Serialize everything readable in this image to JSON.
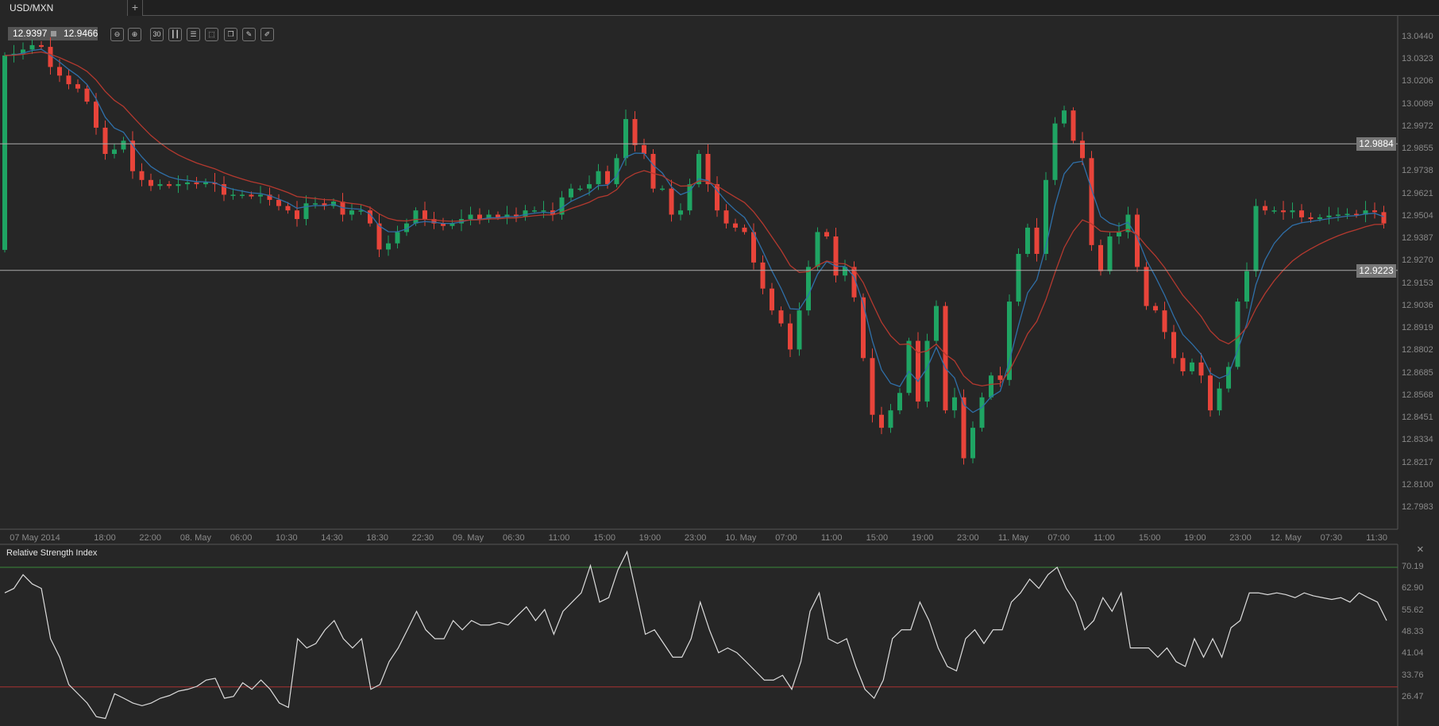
{
  "tab": {
    "title": "USD/MXN",
    "add_label": "+"
  },
  "quote": {
    "bid": "12.9397",
    "ask": "12.9466"
  },
  "toolbar": [
    {
      "name": "zoom-out-icon",
      "glyph": "⊖"
    },
    {
      "name": "zoom-in-icon",
      "glyph": "⊕"
    },
    {
      "name": "timeframe-icon",
      "glyph": "30"
    },
    {
      "name": "indicators-icon",
      "glyph": "┃┃"
    },
    {
      "name": "settings-sliders-icon",
      "glyph": "☰"
    },
    {
      "name": "chart-type-icon",
      "glyph": "⬚"
    },
    {
      "name": "copy-icon",
      "glyph": "❐"
    },
    {
      "name": "edit-icon",
      "glyph": "✎"
    },
    {
      "name": "draw-icon",
      "glyph": "✐"
    }
  ],
  "colors": {
    "up": "#1fa463",
    "down": "#e8443a",
    "ma_fast": "#2f6fa8",
    "ma_slow": "#b4392f",
    "rsi": "#dcdcdc",
    "overbought": "#3a8a3a",
    "oversold": "#a83232",
    "hline": "#aaaaaa"
  },
  "chart_data": [
    {
      "type": "candlestick",
      "symbol": "USD/MXN",
      "first_open": 12.933,
      "close": [
        13.0345,
        13.0354,
        13.0376,
        13.0399,
        13.039,
        13.0285,
        13.024,
        13.0195,
        13.0172,
        13.0104,
        12.9968,
        12.9831,
        12.9854,
        12.99,
        12.9741,
        12.9695,
        12.9664,
        12.9673,
        12.9664,
        12.9673,
        12.9682,
        12.9673,
        12.9682,
        12.9673,
        12.9618,
        12.9618,
        12.9618,
        12.9609,
        12.9618,
        12.9591,
        12.9559,
        12.9536,
        12.9491,
        12.9573,
        12.9573,
        12.9559,
        12.9582,
        12.9514,
        12.9536,
        12.9536,
        12.9468,
        12.9332,
        12.9364,
        12.9423,
        12.9468,
        12.9536,
        12.9491,
        12.9468,
        12.9455,
        12.9468,
        12.9491,
        12.9514,
        12.9491,
        12.9514,
        12.95,
        12.9514,
        12.9505,
        12.9536,
        12.9536,
        12.9536,
        12.9514,
        12.9604,
        12.965,
        12.965,
        12.9673,
        12.9741,
        12.9673,
        12.9809,
        13.0013,
        12.9877,
        12.9831,
        12.965,
        12.965,
        12.9514,
        12.9536,
        12.9673,
        12.9831,
        12.9673,
        12.9536,
        12.9468,
        12.9446,
        12.9423,
        12.9264,
        12.9128,
        12.9014,
        12.8946,
        12.881,
        12.9014,
        12.9241,
        12.9423,
        12.94,
        12.9196,
        12.9241,
        12.9082,
        12.8765,
        12.8469,
        12.8401,
        12.8492,
        12.8583,
        12.8855,
        12.8538,
        12.8855,
        12.9037,
        12.8492,
        12.856,
        12.8242,
        12.8401,
        12.856,
        12.8674,
        12.8651,
        12.906,
        12.9309,
        12.9446,
        12.9309,
        12.9695,
        12.999,
        13.0058,
        12.99,
        12.9809,
        12.9355,
        12.9219,
        12.94,
        12.9423,
        12.9514,
        12.9241,
        12.9037,
        12.9014,
        12.8901,
        12.8765,
        12.8696,
        12.8742,
        12.8674,
        12.8492,
        12.8606,
        12.8719,
        12.906,
        12.9219,
        12.9559,
        12.9536,
        12.9536,
        12.9527,
        12.9536,
        12.95,
        12.9491,
        12.95,
        12.9509,
        12.9514,
        12.9518,
        12.9514,
        12.9536,
        12.9527,
        12.9468
      ],
      "overlays": [
        "moving-average-fast",
        "moving-average-slow"
      ],
      "horizontal_lines": [
        {
          "value": 12.9884,
          "label": "12.9884"
        },
        {
          "value": 12.9223,
          "label": "12.9223"
        }
      ],
      "y_ticks": [
        "13.0440",
        "13.0323",
        "13.0206",
        "13.0089",
        "12.9972",
        "12.9855",
        "12.9738",
        "12.9621",
        "12.9504",
        "12.9387",
        "12.9270",
        "12.9153",
        "12.9036",
        "12.8919",
        "12.8802",
        "12.8685",
        "12.8568",
        "12.8451",
        "12.8334",
        "12.8217",
        "12.8100",
        "12.7983"
      ],
      "ylim": [
        12.7983,
        13.044
      ],
      "x_ticks": [
        "07 May 2014",
        "18:00",
        "22:00",
        "08. May",
        "06:00",
        "10:30",
        "14:30",
        "18:30",
        "22:30",
        "09. May",
        "06:30",
        "11:00",
        "15:00",
        "19:00",
        "23:00",
        "10. May",
        "07:00",
        "11:00",
        "15:00",
        "19:00",
        "23:00",
        "11. May",
        "07:00",
        "11:00",
        "15:00",
        "19:00",
        "23:00",
        "12. May",
        "07:30",
        "11:30"
      ],
      "grid": false
    },
    {
      "type": "line",
      "title": "Relative Strength Index",
      "values": [
        61.6,
        63.1,
        67.7,
        64.6,
        63.1,
        46.2,
        40.0,
        30.8,
        27.7,
        24.6,
        20.0,
        19.4,
        27.7,
        26.2,
        24.6,
        23.7,
        24.6,
        26.2,
        27.1,
        28.6,
        29.2,
        30.2,
        32.3,
        32.9,
        26.2,
        26.8,
        31.4,
        29.2,
        32.3,
        29.2,
        24.6,
        23.1,
        46.2,
        43.1,
        44.6,
        49.2,
        52.3,
        46.2,
        43.1,
        46.2,
        29.2,
        30.8,
        38.5,
        43.1,
        49.2,
        55.4,
        49.2,
        46.2,
        46.2,
        52.3,
        49.2,
        52.3,
        50.8,
        50.8,
        51.7,
        50.8,
        53.9,
        56.9,
        52.3,
        56.0,
        47.7,
        55.4,
        58.5,
        61.6,
        70.8,
        58.5,
        60.0,
        69.3,
        75.4,
        61.6,
        47.7,
        49.2,
        44.6,
        40.0,
        40.0,
        46.2,
        58.5,
        49.2,
        41.5,
        43.1,
        41.5,
        38.5,
        35.4,
        32.3,
        32.3,
        33.9,
        29.2,
        38.5,
        55.4,
        61.6,
        46.2,
        44.6,
        46.2,
        36.9,
        29.2,
        26.2,
        32.3,
        46.2,
        49.2,
        49.2,
        58.5,
        52.3,
        43.1,
        36.9,
        35.4,
        46.2,
        49.2,
        44.6,
        49.2,
        49.2,
        58.5,
        61.6,
        66.2,
        63.1,
        67.7,
        70.2,
        63.1,
        58.5,
        49.2,
        52.3,
        60.0,
        55.4,
        61.6,
        43.1,
        43.1,
        43.1,
        40.0,
        43.1,
        38.5,
        36.9,
        46.2,
        40.0,
        46.2,
        40.0,
        49.9,
        52.3,
        61.6,
        61.6,
        61.0,
        61.6,
        61.0,
        60.0,
        61.6,
        60.6,
        60.0,
        59.4,
        60.0,
        58.5,
        61.6,
        60.0,
        58.5,
        52.3
      ],
      "levels": {
        "overbought": 70.19,
        "oversold": 30
      },
      "y_ticks": [
        "70.19",
        "62.90",
        "55.62",
        "48.33",
        "41.04",
        "33.76",
        "26.47"
      ],
      "ylim": [
        26.47,
        70.19
      ],
      "close_label": "×"
    }
  ]
}
